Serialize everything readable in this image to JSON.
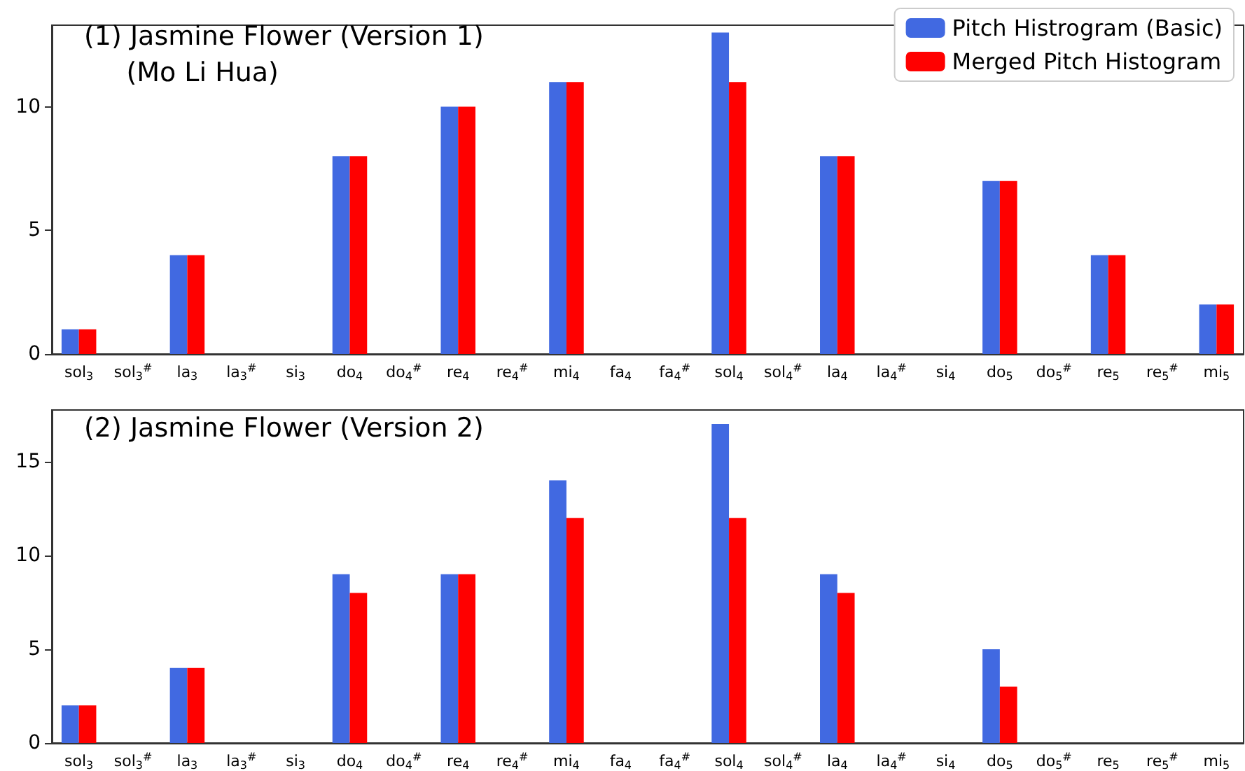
{
  "chart_data": [
    {
      "type": "bar",
      "title": "(1) Jasmine Flower (Version 1)\n     (Mo Li Hua)",
      "categories": [
        "sol$_{3}$",
        "sol$_{3}$$^{#}$",
        "la$_{3}$",
        "la$_{3}$$^{#}$",
        "si$_{3}$",
        "do$_{4}$",
        "do$_{4}$$^{#}$",
        "re$_{4}$",
        "re$_{4}$$^{#}$",
        "mi$_{4}$",
        "fa$_{4}$",
        "fa$_{4}$$^{#}$",
        "sol$_{4}$",
        "sol$_{4}$$^{#}$",
        "la$_{4}$",
        "la$_{4}$$^{#}$",
        "si$_{4}$",
        "do$_{5}$",
        "do$_{5}$$^{#}$",
        "re$_{5}$",
        "re$_{5}$$^{#}$",
        "mi$_{5}$"
      ],
      "series": [
        {
          "name": "Pitch Histrogram (Basic)",
          "color": "#4169e1",
          "values": [
            1,
            0,
            4,
            0,
            0,
            8,
            0,
            10,
            0,
            11,
            0,
            0,
            13,
            0,
            8,
            0,
            0,
            7,
            0,
            4,
            0,
            2
          ]
        },
        {
          "name": "Merged Pitch Histogram",
          "color": "#ff0000",
          "values": [
            1,
            0,
            4,
            0,
            0,
            8,
            0,
            10,
            0,
            11,
            0,
            0,
            11,
            0,
            8,
            0,
            0,
            7,
            0,
            4,
            0,
            2
          ]
        }
      ],
      "ylim": [
        0,
        13.3
      ],
      "yticks": [
        0,
        5,
        10
      ],
      "grid": false,
      "legend": "top right"
    },
    {
      "type": "bar",
      "title": "(2) Jasmine Flower (Version 2)",
      "categories": [
        "sol$_{3}$",
        "sol$_{3}$$^{#}$",
        "la$_{3}$",
        "la$_{3}$$^{#}$",
        "si$_{3}$",
        "do$_{4}$",
        "do$_{4}$$^{#}$",
        "re$_{4}$",
        "re$_{4}$$^{#}$",
        "mi$_{4}$",
        "fa$_{4}$",
        "fa$_{4}$$^{#}$",
        "sol$_{4}$",
        "sol$_{4}$$^{#}$",
        "la$_{4}$",
        "la$_{4}$$^{#}$",
        "si$_{4}$",
        "do$_{5}$",
        "do$_{5}$$^{#}$",
        "re$_{5}$",
        "re$_{5}$$^{#}$",
        "mi$_{5}$"
      ],
      "series": [
        {
          "color": "#4169e1",
          "values": [
            2,
            0,
            4,
            0,
            0,
            9,
            0,
            9,
            0,
            14,
            0,
            0,
            17,
            0,
            9,
            0,
            0,
            5,
            0,
            0,
            0,
            0
          ]
        },
        {
          "color": "#ff0000",
          "values": [
            2,
            0,
            4,
            0,
            0,
            8,
            0,
            9,
            0,
            12,
            0,
            0,
            12,
            0,
            8,
            0,
            0,
            3,
            0,
            0,
            0,
            0
          ]
        }
      ],
      "ylim": [
        0,
        17.75
      ],
      "yticks": [
        0,
        5,
        10,
        15
      ],
      "grid": false
    }
  ]
}
